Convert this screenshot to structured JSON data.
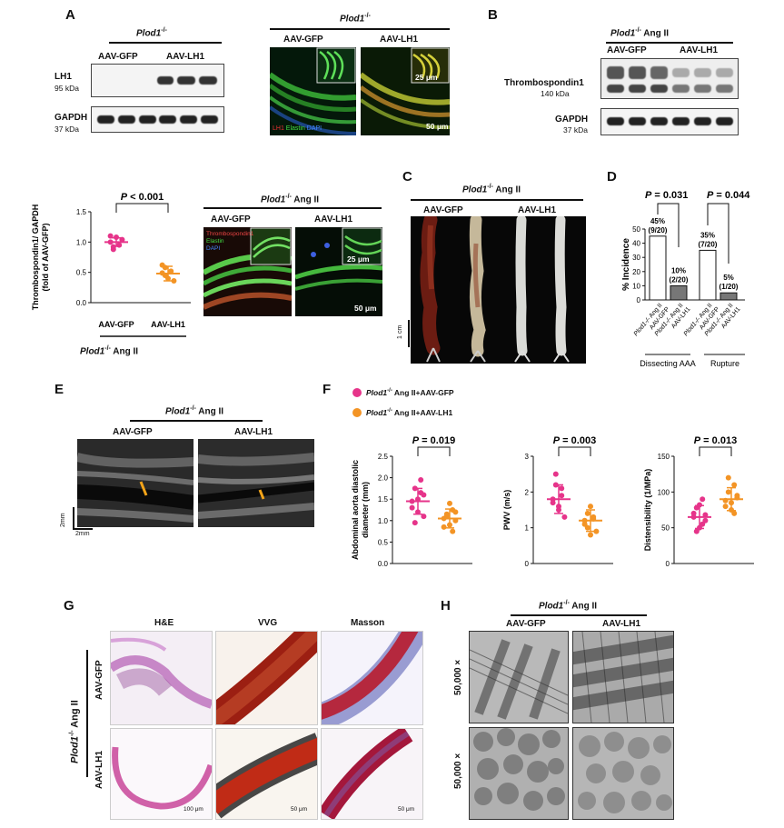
{
  "panels": {
    "A": "A",
    "B": "B",
    "C": "C",
    "D": "D",
    "E": "E",
    "F": "F",
    "G": "G",
    "H": "H"
  },
  "common": {
    "genotype": "Plod1",
    "ko_sup": "-/-",
    "ang": "Ang II",
    "gfp": "AAV-GFP",
    "lh1": "AAV-LH1"
  },
  "panelA": {
    "blot_rows": [
      {
        "name": "LH1",
        "kda": "95 kDa"
      },
      {
        "name": "GAPDH",
        "kda": "37 kDa"
      }
    ],
    "if_legend": {
      "lh1": "LH1",
      "elastin": "Elastin",
      "dapi": "DAPI"
    },
    "scale_inset": "25 μm",
    "scale_main": "50 μm",
    "quant": {
      "ylabel1": "Thrombospondin1/ GAPDH",
      "ylabel2": "(fold of AAV-GFP)",
      "p": "P < 0.001",
      "yticks": [
        "0.0",
        "0.5",
        "1.0",
        "1.5"
      ],
      "colors": {
        "gfp": "#e6348a",
        "lh1": "#f39425"
      }
    },
    "if2_legend": {
      "tsp": "Thrombospondin1",
      "elastin": "Elastin",
      "dapi": "DAPI"
    }
  },
  "panelB": {
    "rows": [
      {
        "name": "Thrombospondin1",
        "kda": "140 kDa"
      },
      {
        "name": "GAPDH",
        "kda": "37 kDa"
      }
    ]
  },
  "panelC": {
    "scale": "1 cm"
  },
  "panelD": {
    "ylabel": "% Incidence",
    "p1": "P = 0.031",
    "p2": "P = 0.044",
    "yticks": [
      "0",
      "10",
      "20",
      "30",
      "40",
      "50"
    ],
    "bars": [
      {
        "pct": "45%",
        "frac": "(9/20)",
        "value": 45,
        "fill": "#ffffff"
      },
      {
        "pct": "10%",
        "frac": "(2/20)",
        "value": 10,
        "fill": "#777777"
      },
      {
        "pct": "35%",
        "frac": "(7/20)",
        "value": 35,
        "fill": "#ffffff"
      },
      {
        "pct": "5%",
        "frac": "(1/20)",
        "value": 5,
        "fill": "#777777"
      }
    ],
    "groups": [
      "Dissecting AAA",
      "Rupture"
    ]
  },
  "panelE": {
    "scale_v": "2mm",
    "scale_h": "2mm"
  },
  "panelF": {
    "legend": [
      "Ang II+AAV-GFP",
      "Ang II+AAV-LH1"
    ],
    "plots": [
      {
        "ylabel": "Abdominal aorta diastolic diameter (mm)",
        "p": "P = 0.019",
        "yticks": [
          "0.0",
          "0.5",
          "1.0",
          "1.5",
          "2.0",
          "2.5"
        ],
        "ymax": 2.5
      },
      {
        "ylabel": "PWV (m/s)",
        "p": "P = 0.003",
        "yticks": [
          "0",
          "1",
          "2",
          "3"
        ],
        "ymax": 3
      },
      {
        "ylabel": "Distensibility (1/MPa)",
        "p": "P = 0.013",
        "yticks": [
          "0",
          "50",
          "100",
          "150"
        ],
        "ymax": 150
      }
    ]
  },
  "panelG": {
    "cols": [
      "H&E",
      "VVG",
      "Masson"
    ],
    "scales": [
      "100 μm",
      "50 μm",
      "50 μm"
    ]
  },
  "panelH": {
    "mag": "50,000 ×"
  },
  "chart_data": [
    {
      "type": "scatter",
      "categories": [
        "AAV-GFP",
        "AAV-LH1"
      ],
      "ylabel": "Thrombospondin1/ GAPDH (fold of AAV-GFP)",
      "ylim": [
        0,
        1.5
      ],
      "series": [
        {
          "name": "AAV-GFP",
          "values": [
            1.0,
            0.92,
            1.08,
            0.95,
            1.04,
            1.1,
            0.88
          ],
          "mean": 1.0,
          "sd": 0.07
        },
        {
          "name": "AAV-LH1",
          "values": [
            0.49,
            0.58,
            0.4,
            0.52,
            0.36,
            0.62,
            0.45
          ],
          "mean": 0.48,
          "sd": 0.12
        }
      ]
    },
    {
      "type": "bar",
      "categories": [
        "Plod1-/- Ang II AAV-GFP",
        "Plod1-/- Ang II AAV-LH1",
        "Plod1-/- Ang II AAV-GFP",
        "Plod1-/- Ang II AAV-LH1"
      ],
      "values": [
        45,
        10,
        35,
        5
      ],
      "ylabel": "% Incidence",
      "ylim": [
        0,
        50
      ]
    },
    {
      "type": "scatter",
      "categories": [
        "AAV-GFP",
        "AAV-LH1"
      ],
      "ylabel": "Abdominal aorta diastolic diameter (mm)",
      "ylim": [
        0,
        2.5
      ],
      "series": [
        {
          "name": "AAV-GFP",
          "values": [
            1.45,
            1.75,
            1.2,
            1.95,
            1.6,
            1.3,
            0.95,
            1.5,
            1.65,
            1.1
          ],
          "mean": 1.45,
          "sd": 0.3
        },
        {
          "name": "AAV-LH1",
          "values": [
            1.05,
            1.15,
            0.9,
            1.25,
            1.0,
            0.85,
            1.1,
            1.4,
            0.75,
            1.2
          ],
          "mean": 1.05,
          "sd": 0.22
        }
      ]
    },
    {
      "type": "scatter",
      "categories": [
        "AAV-GFP",
        "AAV-LH1"
      ],
      "ylabel": "PWV (m/s)",
      "ylim": [
        0,
        3
      ],
      "series": [
        {
          "name": "AAV-GFP",
          "values": [
            1.8,
            2.5,
            1.6,
            2.1,
            1.3,
            1.7,
            2.2,
            1.5,
            1.9
          ],
          "mean": 1.8,
          "sd": 0.4
        },
        {
          "name": "AAV-LH1",
          "values": [
            1.2,
            1.0,
            1.6,
            1.3,
            0.9,
            1.1,
            1.4,
            0.8,
            1.25
          ],
          "mean": 1.2,
          "sd": 0.3
        }
      ]
    },
    {
      "type": "scatter",
      "categories": [
        "AAV-GFP",
        "AAV-LH1"
      ],
      "ylabel": "Distensibility (1/MPa)",
      "ylim": [
        0,
        150
      ],
      "series": [
        {
          "name": "AAV-GFP",
          "values": [
            65,
            78,
            50,
            90,
            60,
            70,
            45,
            82,
            55,
            68
          ],
          "mean": 65,
          "sd": 16
        },
        {
          "name": "AAV-LH1",
          "values": [
            88,
            100,
            75,
            110,
            95,
            80,
            120,
            85,
            70,
            92
          ],
          "mean": 90,
          "sd": 16
        }
      ]
    }
  ]
}
